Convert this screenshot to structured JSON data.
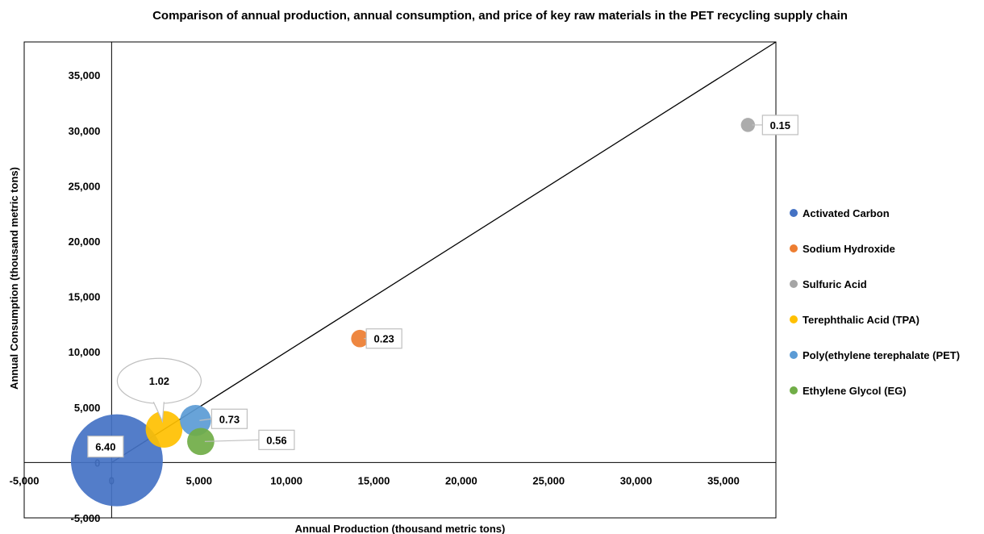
{
  "chart_data": {
    "type": "bubble",
    "title": "Comparison of annual production, annual consumption, and price of key raw materials in the PET recycling supply chain",
    "xlabel": "Annual Production (thousand metric tons)",
    "ylabel": "Annual Consumption (thousand metric tons)",
    "xlim": [
      -5000,
      38000
    ],
    "ylim": [
      -5000,
      38000
    ],
    "x_ticks": [
      "-5,000",
      "0",
      "5,000",
      "10,000",
      "15,000",
      "20,000",
      "25,000",
      "30,000",
      "35,000"
    ],
    "y_ticks": [
      "-5,000",
      "0",
      "5,000",
      "10,000",
      "15,000",
      "20,000",
      "25,000",
      "30,000",
      "35,000"
    ],
    "x_tick_values": [
      -5000,
      0,
      5000,
      10000,
      15000,
      20000,
      25000,
      30000,
      35000
    ],
    "y_tick_values": [
      -5000,
      0,
      5000,
      10000,
      15000,
      20000,
      25000,
      30000,
      35000
    ],
    "reference_line": {
      "from": [
        0,
        0
      ],
      "to": [
        38000,
        38000
      ]
    },
    "legend_position": "right",
    "series": [
      {
        "name": "Activated Carbon",
        "x": 300,
        "y": 200,
        "size": 6.4,
        "label": "6.40",
        "color": "#4472C4"
      },
      {
        "name": "Sodium Hydroxide",
        "x": 14200,
        "y": 11200,
        "size": 0.23,
        "label": "0.23",
        "color": "#ED7D31"
      },
      {
        "name": "Sulfuric Acid",
        "x": 36400,
        "y": 30500,
        "size": 0.15,
        "label": "0.15",
        "color": "#A5A5A5"
      },
      {
        "name": "Terephthalic Acid (TPA)",
        "x": 3000,
        "y": 3000,
        "size": 1.02,
        "label": "1.02",
        "color": "#FFC000"
      },
      {
        "name": "Poly(ethylene terephalate (PET)",
        "x": 4800,
        "y": 3800,
        "size": 0.73,
        "label": "0.73",
        "color": "#5B9BD5"
      },
      {
        "name": "Ethylene Glycol (EG)",
        "x": 5100,
        "y": 1900,
        "size": 0.56,
        "label": "0.56",
        "color": "#70AD47"
      }
    ]
  }
}
